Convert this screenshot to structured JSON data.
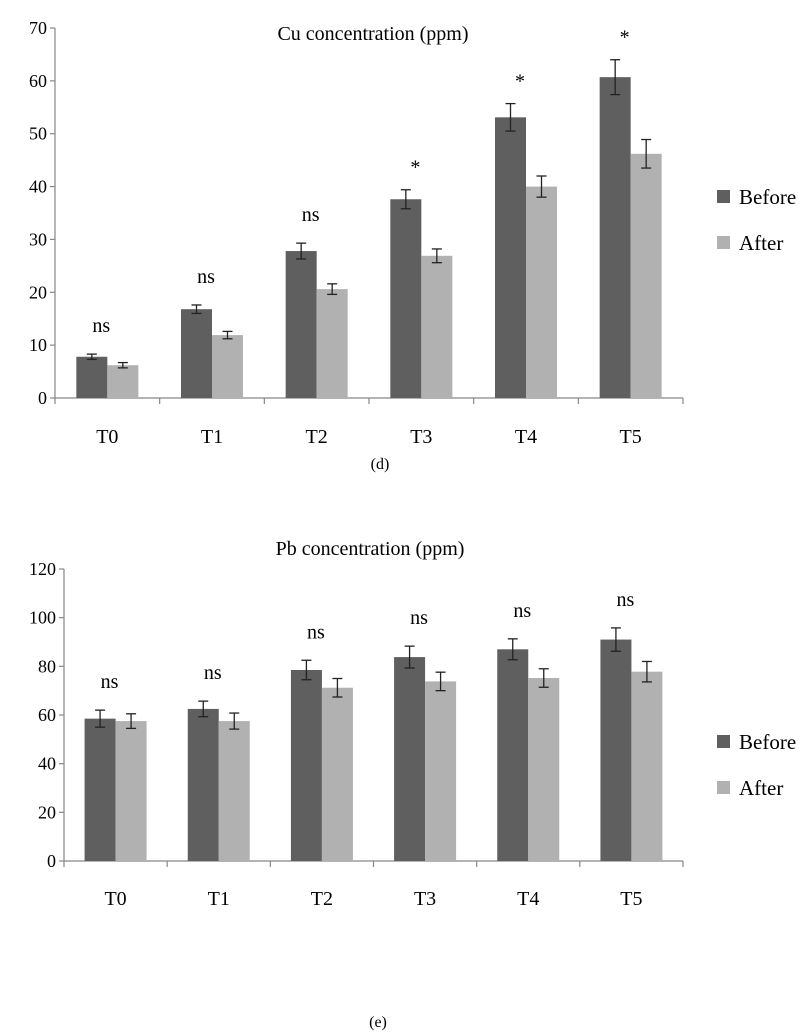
{
  "colors": {
    "before": "#5f5f5f",
    "after": "#b1b1b1",
    "axis": "#878787",
    "error": "#222222"
  },
  "chart_data": [
    {
      "type": "bar",
      "title": "Cu concentration (ppm)",
      "caption": "(d)",
      "categories": [
        "T0",
        "T1",
        "T2",
        "T3",
        "T4",
        "T5"
      ],
      "ylim": [
        0,
        70
      ],
      "yticks": [
        0,
        10,
        20,
        30,
        40,
        50,
        60,
        70
      ],
      "legend_position": "right",
      "series": [
        {
          "name": "Before",
          "values": [
            7.8,
            16.8,
            27.8,
            37.6,
            53.1,
            60.7
          ],
          "errors": [
            0.5,
            0.8,
            1.5,
            1.8,
            2.6,
            3.3
          ]
        },
        {
          "name": "After",
          "values": [
            6.2,
            11.9,
            20.6,
            26.9,
            40.0,
            46.2
          ],
          "errors": [
            0.5,
            0.7,
            1.0,
            1.3,
            2.0,
            2.7
          ]
        }
      ],
      "annotations": [
        "ns",
        "ns",
        "ns",
        "*",
        "*",
        "*"
      ]
    },
    {
      "type": "bar",
      "title": "Pb concentration  (ppm)",
      "caption": "(e)",
      "categories": [
        "T0",
        "T1",
        "T2",
        "T3",
        "T4",
        "T5"
      ],
      "ylim": [
        0,
        120
      ],
      "yticks": [
        0,
        20,
        40,
        60,
        80,
        100,
        120
      ],
      "legend_position": "right",
      "series": [
        {
          "name": "Before",
          "values": [
            58.5,
            62.5,
            78.5,
            83.8,
            87.0,
            91.0
          ],
          "errors": [
            3.5,
            3.2,
            4.0,
            4.5,
            4.3,
            4.8
          ]
        },
        {
          "name": "After",
          "values": [
            57.5,
            57.5,
            71.2,
            73.8,
            75.2,
            77.8
          ],
          "errors": [
            3.0,
            3.3,
            3.8,
            3.8,
            3.8,
            4.2
          ]
        }
      ],
      "annotations": [
        "ns",
        "ns",
        "ns",
        "ns",
        "ns",
        "ns"
      ]
    }
  ]
}
